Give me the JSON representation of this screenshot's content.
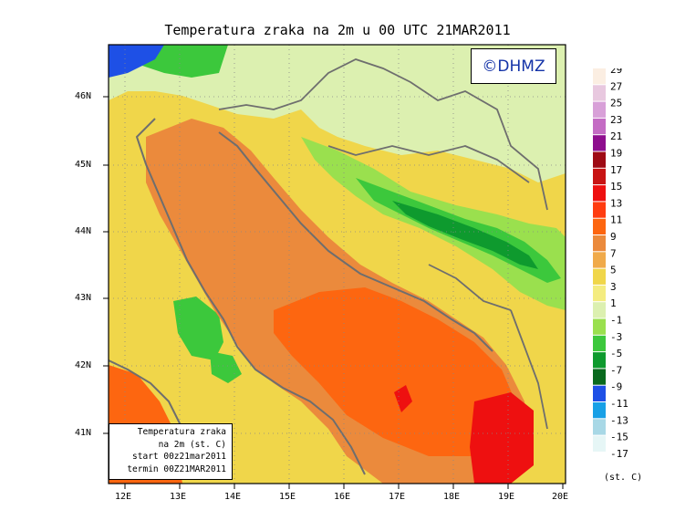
{
  "map": {
    "title": "Temperatura zraka na 2m u 00 UTC 21MAR2011",
    "watermark": "©DHMZ",
    "info_lines": [
      "Temperatura zraka",
      "na 2m (st. C)",
      "start 00z21mar2011",
      "termin 00Z21MAR2011"
    ],
    "lat_labels": [
      "46N",
      "45N",
      "44N",
      "43N",
      "42N",
      "41N"
    ],
    "lon_labels": [
      "12E",
      "13E",
      "14E",
      "15E",
      "16E",
      "17E",
      "18E",
      "19E",
      "20E"
    ],
    "legend_unit": "(st. C)",
    "legend": [
      {
        "label": "29",
        "color": "#fbeee2"
      },
      {
        "label": "27",
        "color": "#e8c8df"
      },
      {
        "label": "25",
        "color": "#d8a0d8"
      },
      {
        "label": "23",
        "color": "#c46cc4"
      },
      {
        "label": "21",
        "color": "#8e0e8e"
      },
      {
        "label": "19",
        "color": "#9e0a14"
      },
      {
        "label": "17",
        "color": "#c81414"
      },
      {
        "label": "15",
        "color": "#ee1010"
      },
      {
        "label": "13",
        "color": "#ff3c10"
      },
      {
        "label": "11",
        "color": "#fd6610"
      },
      {
        "label": "9",
        "color": "#eb8a3c"
      },
      {
        "label": "7",
        "color": "#f0aa4a"
      },
      {
        "label": "5",
        "color": "#f0d64a"
      },
      {
        "label": "3",
        "color": "#f4ec80"
      },
      {
        "label": "1",
        "color": "#dcf0b0"
      },
      {
        "label": "-1",
        "color": "#9ae04e"
      },
      {
        "label": "-3",
        "color": "#3cc83c"
      },
      {
        "label": "-5",
        "color": "#0e9a2e"
      },
      {
        "label": "-7",
        "color": "#0a6a1e"
      },
      {
        "label": "-9",
        "color": "#1e50e6"
      },
      {
        "label": "-11",
        "color": "#18a0e6"
      },
      {
        "label": "-13",
        "color": "#a8d8e6"
      },
      {
        "label": "-15",
        "color": "#e6f6f6"
      },
      {
        "label": "-17",
        "color": "#ffffff"
      }
    ]
  }
}
